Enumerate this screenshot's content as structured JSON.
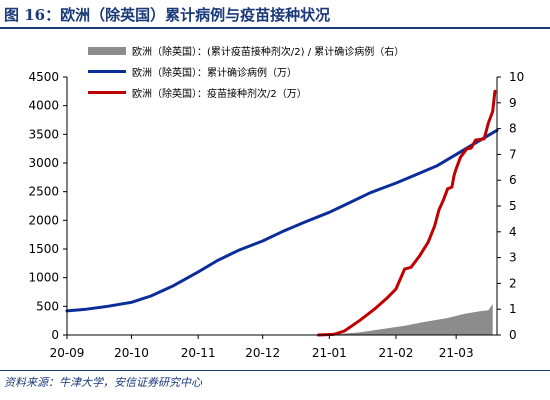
{
  "header": {
    "title": "图 16：欧洲（除英国）累计病例与疫苗接种状况"
  },
  "footer": {
    "source": "资料来源：牛津大学，安信证券研究中心"
  },
  "colors": {
    "title": "#1b3a7a",
    "cases_line": "#0a2d9a",
    "vaccine_line": "#c00000",
    "ratio_area": "#8c8c8c"
  },
  "chart_data": {
    "type": "line",
    "title": "",
    "x_tick_labels": [
      "20-09",
      "20-10",
      "20-11",
      "20-12",
      "21-01",
      "21-02",
      "21-03"
    ],
    "x_range": [
      "2020-09-01",
      "2021-03-20"
    ],
    "y_left": {
      "range": [
        0,
        4500
      ],
      "ticks": [
        0,
        500,
        1000,
        1500,
        2000,
        2500,
        3000,
        3500,
        4000,
        4500
      ]
    },
    "y_right": {
      "range": [
        0,
        10
      ],
      "ticks": [
        0,
        1,
        2,
        3,
        4,
        5,
        6,
        7,
        8,
        9,
        10
      ]
    },
    "grid": false,
    "legend_position": "top-left",
    "series": [
      {
        "name": "欧洲（除英国）：(累计疫苗接种剂次/2) / 累计确诊病例（右）",
        "type": "area",
        "axis": "right",
        "points": [
          [
            "2020-12-27",
            0.0
          ],
          [
            "2021-01-05",
            0.04
          ],
          [
            "2021-01-15",
            0.1
          ],
          [
            "2021-01-25",
            0.22
          ],
          [
            "2021-02-05",
            0.36
          ],
          [
            "2021-02-15",
            0.52
          ],
          [
            "2021-02-25",
            0.66
          ],
          [
            "2021-03-05",
            0.82
          ],
          [
            "2021-03-12",
            0.92
          ],
          [
            "2021-03-16",
            0.96
          ],
          [
            "2021-03-18",
            1.2
          ]
        ]
      },
      {
        "name": "欧洲（除英国）：累计确诊病例（万）",
        "type": "line",
        "axis": "left",
        "points": [
          [
            "2020-09-01",
            420
          ],
          [
            "2020-09-10",
            450
          ],
          [
            "2020-09-20",
            500
          ],
          [
            "2020-10-01",
            570
          ],
          [
            "2020-10-10",
            680
          ],
          [
            "2020-10-20",
            850
          ],
          [
            "2020-11-01",
            1100
          ],
          [
            "2020-11-10",
            1300
          ],
          [
            "2020-11-20",
            1480
          ],
          [
            "2020-12-01",
            1640
          ],
          [
            "2020-12-10",
            1800
          ],
          [
            "2020-12-20",
            1960
          ],
          [
            "2021-01-01",
            2140
          ],
          [
            "2021-01-10",
            2300
          ],
          [
            "2021-01-20",
            2480
          ],
          [
            "2021-02-01",
            2650
          ],
          [
            "2021-02-10",
            2790
          ],
          [
            "2021-02-20",
            2950
          ],
          [
            "2021-03-01",
            3150
          ],
          [
            "2021-03-10",
            3350
          ],
          [
            "2021-03-20",
            3570
          ]
        ]
      },
      {
        "name": "欧洲（除英国）：疫苗接种剂次/2（万）",
        "type": "line",
        "axis": "left",
        "points": [
          [
            "2020-12-27",
            0
          ],
          [
            "2021-01-03",
            10
          ],
          [
            "2021-01-08",
            70
          ],
          [
            "2021-01-15",
            250
          ],
          [
            "2021-01-22",
            450
          ],
          [
            "2021-01-28",
            650
          ],
          [
            "2021-02-01",
            800
          ],
          [
            "2021-02-05",
            1150
          ],
          [
            "2021-02-08",
            1180
          ],
          [
            "2021-02-12",
            1380
          ],
          [
            "2021-02-16",
            1620
          ],
          [
            "2021-02-19",
            1900
          ],
          [
            "2021-02-21",
            2180
          ],
          [
            "2021-02-23",
            2350
          ],
          [
            "2021-02-25",
            2550
          ],
          [
            "2021-02-27",
            2580
          ],
          [
            "2021-02-28",
            2780
          ],
          [
            "2021-03-01",
            2900
          ],
          [
            "2021-03-03",
            3100
          ],
          [
            "2021-03-06",
            3250
          ],
          [
            "2021-03-08",
            3260
          ],
          [
            "2021-03-10",
            3400
          ],
          [
            "2021-03-14",
            3420
          ],
          [
            "2021-03-16",
            3700
          ],
          [
            "2021-03-18",
            3900
          ],
          [
            "2021-03-19",
            4250
          ]
        ]
      }
    ]
  }
}
